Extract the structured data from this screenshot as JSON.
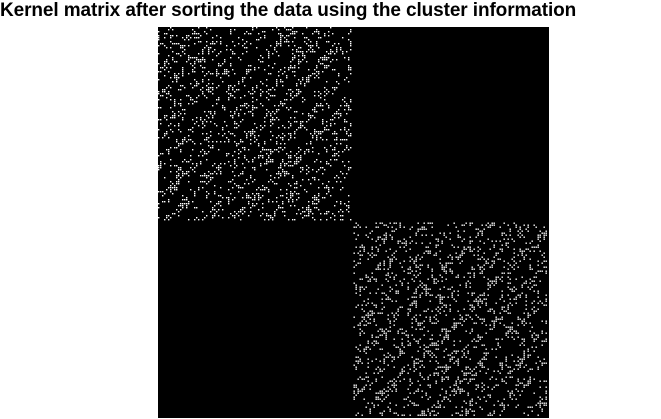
{
  "title": "Kernel matrix after sorting the data using the cluster information",
  "chart_data": {
    "type": "heatmap",
    "title": "Kernel matrix after sorting the data using the cluster information",
    "xlabel": "",
    "ylabel": "",
    "colormap": [
      "#000000",
      "#ffffff"
    ],
    "block_structure": {
      "clusters": 2,
      "blocks": [
        {
          "row_cluster": 1,
          "col_cluster": 1,
          "pattern": "sparse-speckled"
        },
        {
          "row_cluster": 1,
          "col_cluster": 2,
          "pattern": "zero"
        },
        {
          "row_cluster": 2,
          "col_cluster": 1,
          "pattern": "zero"
        },
        {
          "row_cluster": 2,
          "col_cluster": 2,
          "pattern": "sparse-speckled"
        }
      ]
    },
    "grid": false,
    "axes_visible": false
  }
}
